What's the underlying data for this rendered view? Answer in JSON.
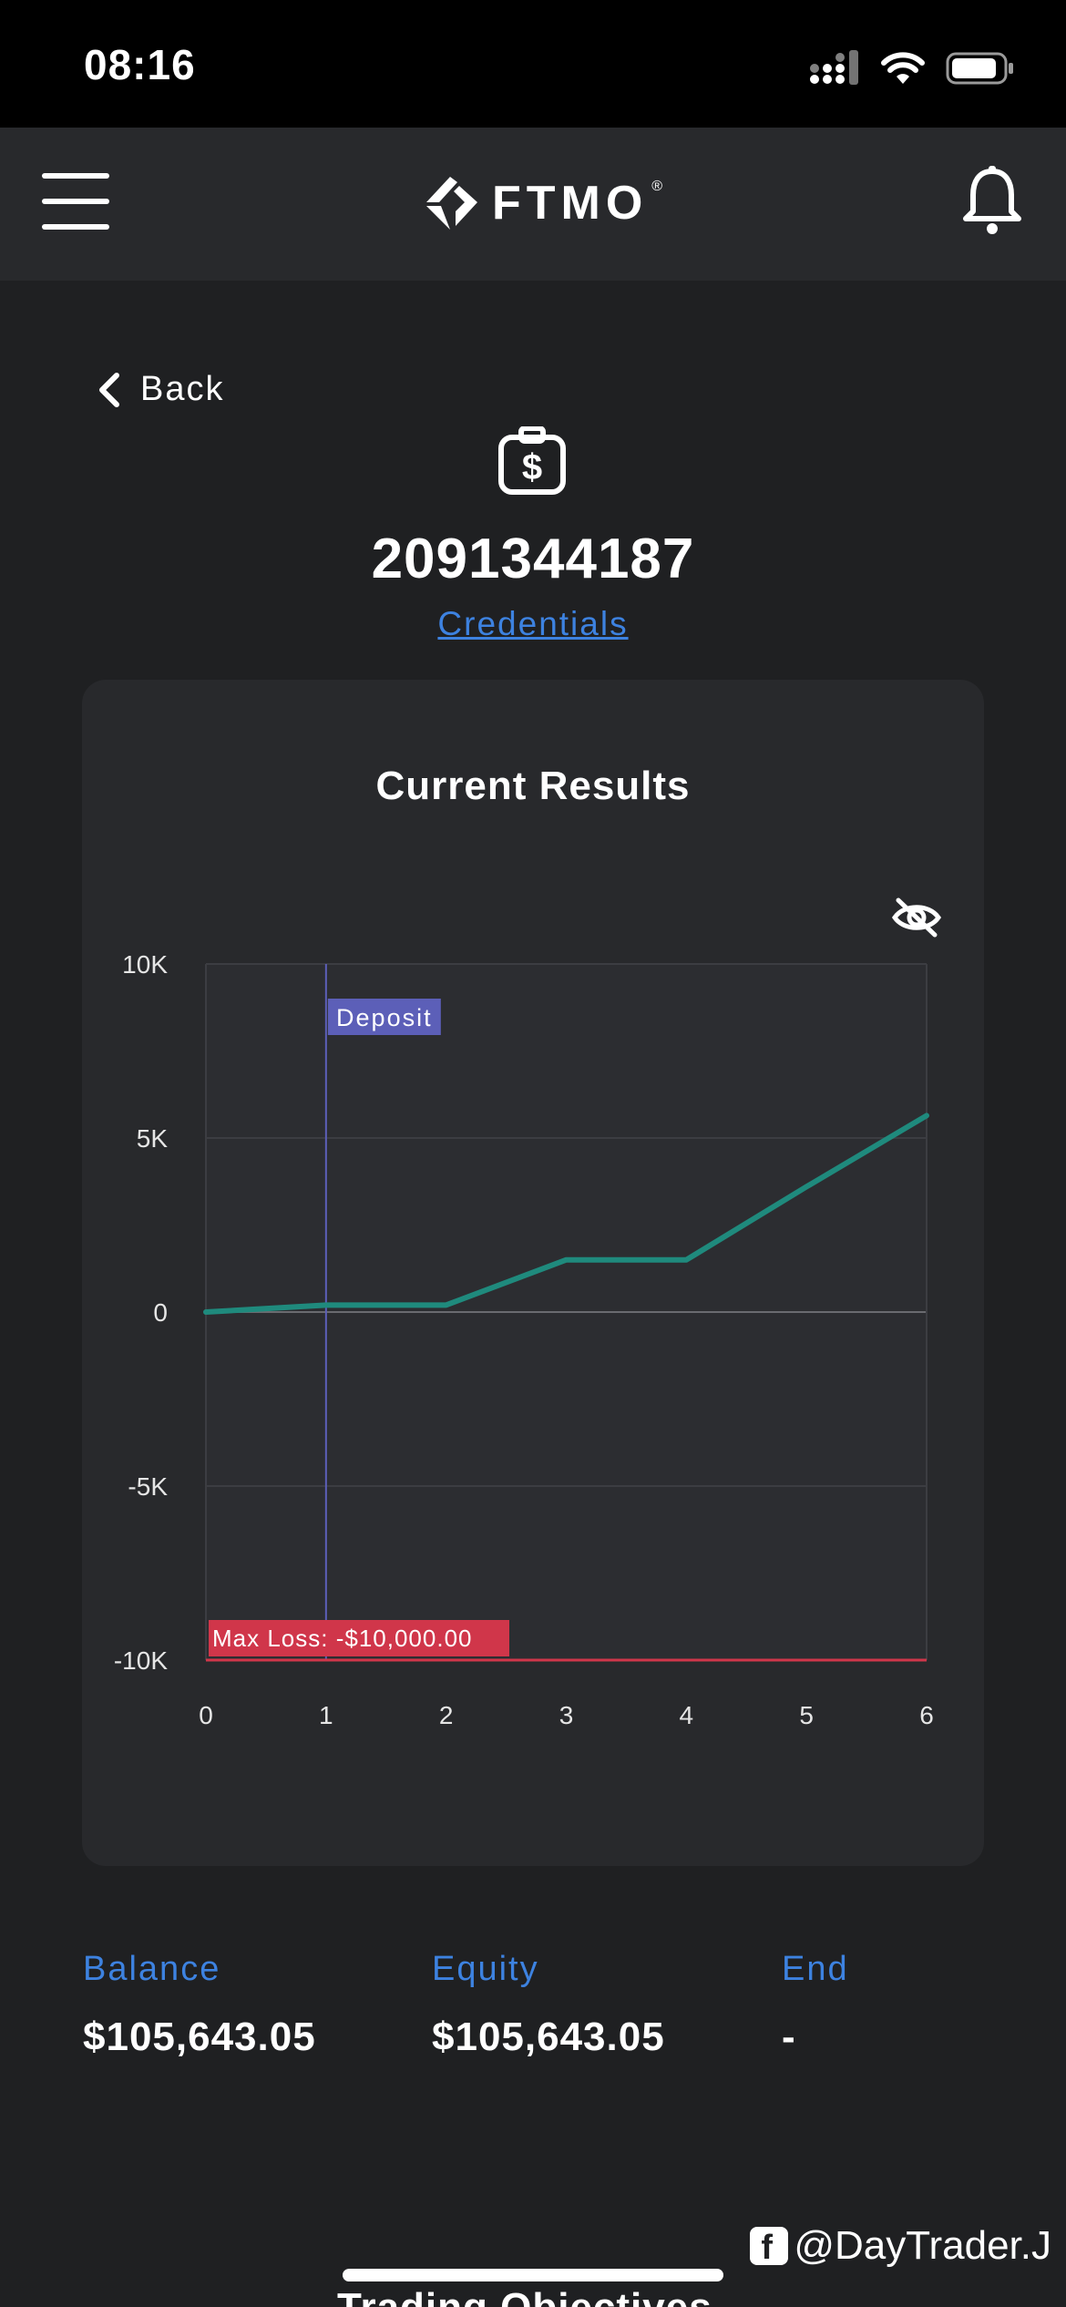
{
  "status_bar": {
    "time": "08:16"
  },
  "header": {
    "brand": "FTMO",
    "brand_mark": "®"
  },
  "nav": {
    "back_label": "Back"
  },
  "account": {
    "id": "2091344187",
    "credentials_link": "Credentials"
  },
  "card": {
    "title": "Current Results"
  },
  "chart_data": {
    "type": "line",
    "x": [
      0,
      1,
      2,
      3,
      4,
      5,
      6
    ],
    "series": [
      {
        "values": [
          0,
          200,
          200,
          1500,
          1500,
          3600,
          5643.05
        ],
        "color": "#1f8a7d"
      }
    ],
    "xticks": [
      "0",
      "1",
      "2",
      "3",
      "4",
      "5",
      "6"
    ],
    "yticks": [
      "10K",
      "5K",
      "0",
      "-5K",
      "-10K"
    ],
    "ylim": [
      -10000,
      10000
    ],
    "xlim": [
      0,
      6
    ],
    "annotations": [
      {
        "label": "Deposit",
        "x": 1,
        "kind": "vertical-line",
        "color": "#5c5fb8"
      },
      {
        "label": "Max Loss: -$10,000.00",
        "y": -10000,
        "kind": "horizontal-line",
        "color": "#d0364a"
      }
    ],
    "grid": true,
    "title": "Current Results"
  },
  "stats": [
    {
      "label": "Balance",
      "value": "$105,643.05"
    },
    {
      "label": "Equity",
      "value": "$105,643.05"
    },
    {
      "label": "End",
      "value": "-"
    }
  ],
  "next_section": {
    "title": "Trading Objectives"
  },
  "watermark": {
    "text": "@DayTrader.J",
    "icon_label": "f"
  }
}
